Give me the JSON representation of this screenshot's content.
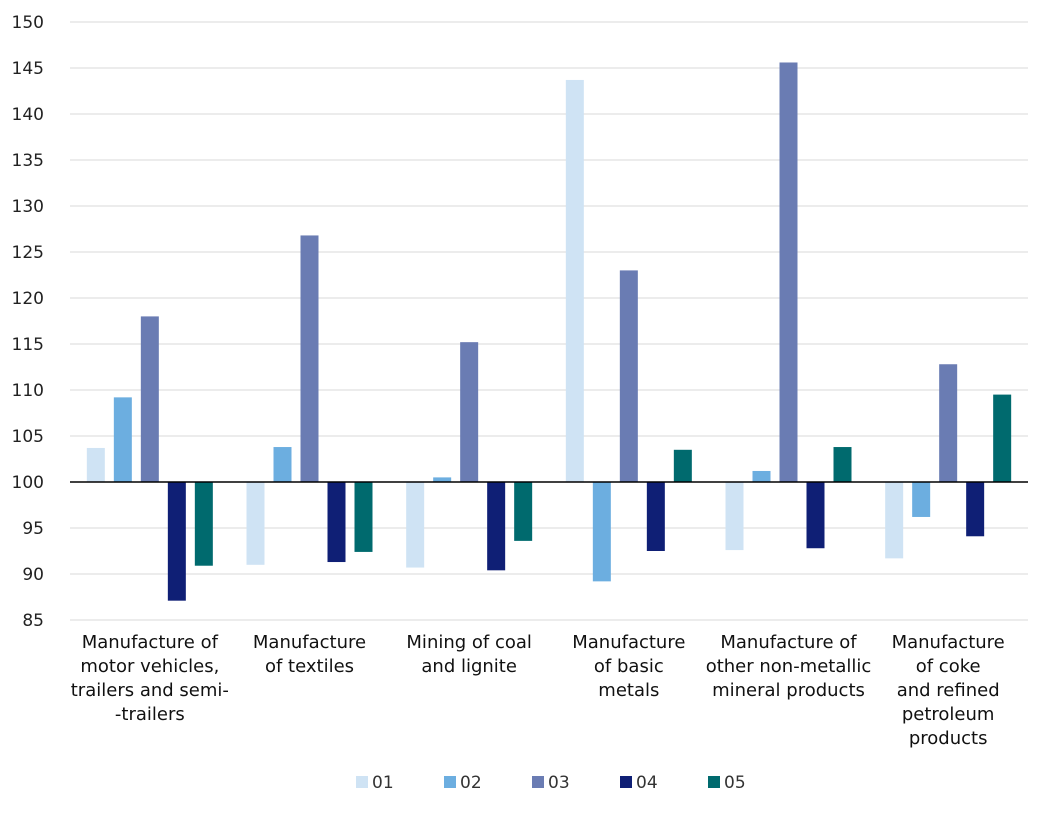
{
  "chart_data": {
    "type": "bar",
    "categories": [
      [
        "Manufacture of",
        "motor vehicles,",
        "trailers and semi-",
        "-trailers"
      ],
      [
        "Manufacture",
        "of textiles"
      ],
      [
        "Mining of coal",
        "and lignite"
      ],
      [
        "Manufacture",
        "of basic",
        "metals"
      ],
      [
        "Manufacture of",
        "other non-metallic",
        "mineral products"
      ],
      [
        "Manufacture",
        "of coke",
        "and refined",
        "petroleum",
        "products"
      ]
    ],
    "series": [
      {
        "name": "01",
        "color": "#cfe3f4",
        "values": [
          103.7,
          91.0,
          90.7,
          143.7,
          92.6,
          91.7
        ]
      },
      {
        "name": "02",
        "color": "#6caee0",
        "values": [
          109.2,
          103.8,
          100.5,
          89.2,
          101.2,
          96.2
        ]
      },
      {
        "name": "03",
        "color": "#6a7cb3",
        "values": [
          118.0,
          126.8,
          115.2,
          123.0,
          145.6,
          112.8
        ]
      },
      {
        "name": "04",
        "color": "#0f1f75",
        "values": [
          87.1,
          91.3,
          90.4,
          92.5,
          92.8,
          94.1
        ]
      },
      {
        "name": "05",
        "color": "#006a6e",
        "values": [
          90.9,
          92.4,
          93.6,
          103.5,
          103.8,
          109.5
        ]
      }
    ],
    "baseline": 100,
    "ylim": [
      85,
      150
    ],
    "yticks": [
      85,
      90,
      95,
      100,
      105,
      110,
      115,
      120,
      125,
      130,
      135,
      140,
      145,
      150
    ],
    "grid": true,
    "legend": "bottom"
  }
}
